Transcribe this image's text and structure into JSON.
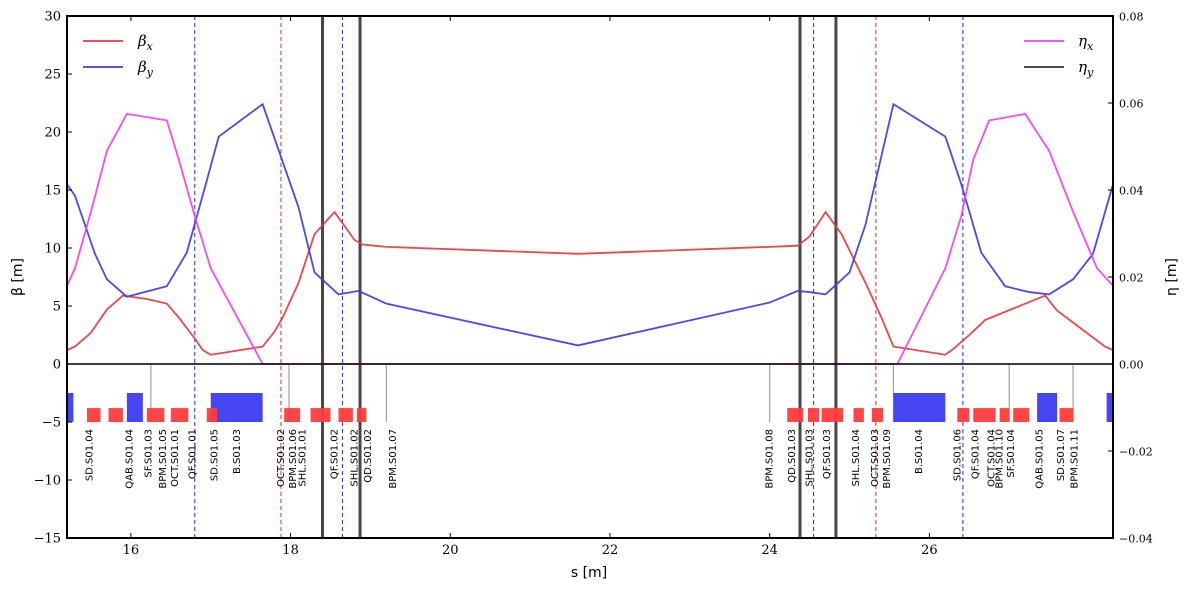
{
  "chart_data": {
    "type": "line",
    "xlabel": "s [m]",
    "ylabel_left": "β [m]",
    "ylabel_right": "η [m]",
    "xlim": [
      15.2,
      28.3
    ],
    "ylim_left": [
      -15,
      30
    ],
    "ylim_right": [
      -0.04,
      0.08
    ],
    "xticks": [
      16,
      18,
      20,
      22,
      24,
      26
    ],
    "yticks_left": [
      -15,
      -10,
      -5,
      0,
      5,
      10,
      15,
      20,
      25,
      30
    ],
    "yticks_right": [
      -0.04,
      -0.02,
      0.0,
      0.02,
      0.04,
      0.06,
      0.08
    ],
    "yticks_right_labels": [
      "−0.04",
      "−0.02",
      "0.00",
      "0.02",
      "0.04",
      "0.06",
      "0.08"
    ],
    "legend_left": [
      {
        "name": "βx",
        "base": "β",
        "sub": "x",
        "color": "#e8383b"
      },
      {
        "name": "βy",
        "base": "β",
        "sub": "y",
        "color": "#3b3be8"
      }
    ],
    "legend_right": [
      {
        "name": "ηx",
        "base": "η",
        "sub": "x",
        "color": "#f03ff0"
      },
      {
        "name": "ηy",
        "base": "η",
        "sub": "y",
        "color": "#333333"
      }
    ],
    "series": [
      {
        "name": "βx",
        "axis": "left",
        "color": "#e8383b",
        "x": [
          15.2,
          15.3,
          15.5,
          15.7,
          15.9,
          16.2,
          16.45,
          16.6,
          16.8,
          16.9,
          17.0,
          17.65,
          17.8,
          17.9,
          18.1,
          18.3,
          18.55,
          18.8,
          18.9,
          19.2,
          21.6,
          24.0,
          24.35,
          24.5,
          24.7,
          24.9,
          25.2,
          25.4,
          25.55,
          26.2,
          26.3,
          26.5,
          26.7,
          27.2,
          27.45,
          27.6,
          28.2,
          28.3
        ],
        "y": [
          1.2,
          1.5,
          2.7,
          4.7,
          5.9,
          5.6,
          5.2,
          4.0,
          2.2,
          1.2,
          0.8,
          1.5,
          2.8,
          4.0,
          7.0,
          11.2,
          13.1,
          10.7,
          10.3,
          10.1,
          9.5,
          10.1,
          10.2,
          11.0,
          13.1,
          11.2,
          7.0,
          4.0,
          1.5,
          0.8,
          1.3,
          2.5,
          3.8,
          5.2,
          5.9,
          4.6,
          1.5,
          1.2
        ]
      },
      {
        "name": "βy",
        "axis": "left",
        "color": "#3b3be8",
        "x": [
          15.2,
          15.3,
          15.55,
          15.7,
          15.95,
          16.45,
          16.7,
          16.95,
          17.1,
          17.65,
          18.1,
          18.3,
          18.6,
          18.85,
          19.2,
          21.6,
          24.0,
          24.35,
          24.5,
          24.7,
          25.0,
          25.2,
          25.55,
          26.2,
          26.4,
          26.65,
          26.95,
          27.25,
          27.5,
          27.8,
          28.05,
          28.3
        ],
        "y": [
          15.5,
          14.5,
          9.5,
          7.3,
          5.8,
          6.7,
          9.6,
          15.8,
          19.6,
          22.4,
          13.5,
          7.9,
          6.0,
          6.3,
          5.2,
          1.6,
          5.3,
          6.3,
          6.2,
          6.0,
          7.9,
          12.0,
          22.4,
          19.6,
          15.5,
          9.6,
          6.7,
          6.2,
          6.0,
          7.3,
          9.5,
          15.5
        ]
      },
      {
        "name": "ηx",
        "axis": "right",
        "color": "#f03ff0",
        "x": [
          15.2,
          15.3,
          15.5,
          15.7,
          15.95,
          16.45,
          16.6,
          16.8,
          17.0,
          17.65,
          17.7,
          18.0,
          24.0,
          25.55,
          25.6,
          26.2,
          26.4,
          26.55,
          26.75,
          27.2,
          27.5,
          27.8,
          28.1,
          28.3
        ],
        "y": [
          0.018,
          0.022,
          0.035,
          0.049,
          0.0575,
          0.056,
          0.047,
          0.034,
          0.022,
          0.0,
          0.0,
          0.0,
          0.0,
          0.0,
          0.0,
          0.022,
          0.034,
          0.047,
          0.056,
          0.0575,
          0.049,
          0.035,
          0.022,
          0.018
        ]
      },
      {
        "name": "ηy",
        "axis": "right",
        "color": "#333333",
        "x": [
          15.2,
          28.3
        ],
        "y": [
          0.0,
          0.0
        ]
      }
    ],
    "vlines": [
      {
        "x": 16.8,
        "color": "#3b3be8",
        "style": "dashed",
        "width": 1.1
      },
      {
        "x": 17.88,
        "color": "#e8383b",
        "style": "dashed",
        "width": 1.1
      },
      {
        "x": 18.65,
        "color": "#3b3be8",
        "style": "dashed",
        "width": 1.1
      },
      {
        "x": 24.55,
        "color": "#3b3be8",
        "style": "dashed",
        "width": 1.1
      },
      {
        "x": 25.33,
        "color": "#e8383b",
        "style": "dashed",
        "width": 1.1
      },
      {
        "x": 26.42,
        "color": "#3b3be8",
        "style": "dashed",
        "width": 1.1
      },
      {
        "x": 18.4,
        "color": "#333333",
        "style": "solid",
        "width": 3
      },
      {
        "x": 18.87,
        "color": "#333333",
        "style": "solid",
        "width": 3
      },
      {
        "x": 24.38,
        "color": "#333333",
        "style": "solid",
        "width": 3
      },
      {
        "x": 24.83,
        "color": "#333333",
        "style": "solid",
        "width": 3
      }
    ],
    "element_boxes": [
      {
        "x0": 15.2,
        "x1": 15.28,
        "kind": "big"
      },
      {
        "x0": 15.95,
        "x1": 16.15,
        "kind": "big"
      },
      {
        "x0": 17.0,
        "x1": 17.65,
        "kind": "big"
      },
      {
        "x0": 25.55,
        "x1": 26.2,
        "kind": "big"
      },
      {
        "x0": 27.35,
        "x1": 27.6,
        "kind": "big"
      },
      {
        "x0": 28.22,
        "x1": 28.3,
        "kind": "big"
      },
      {
        "x0": 15.45,
        "x1": 15.62,
        "kind": "small"
      },
      {
        "x0": 15.72,
        "x1": 15.9,
        "kind": "small"
      },
      {
        "x0": 16.2,
        "x1": 16.42,
        "kind": "small"
      },
      {
        "x0": 16.5,
        "x1": 16.72,
        "kind": "small"
      },
      {
        "x0": 16.95,
        "x1": 17.08,
        "kind": "small"
      },
      {
        "x0": 17.92,
        "x1": 18.12,
        "kind": "small"
      },
      {
        "x0": 18.25,
        "x1": 18.5,
        "kind": "small"
      },
      {
        "x0": 18.6,
        "x1": 18.78,
        "kind": "small"
      },
      {
        "x0": 18.83,
        "x1": 18.95,
        "kind": "small"
      },
      {
        "x0": 24.22,
        "x1": 24.42,
        "kind": "small"
      },
      {
        "x0": 24.48,
        "x1": 24.62,
        "kind": "small"
      },
      {
        "x0": 24.65,
        "x1": 24.92,
        "kind": "small"
      },
      {
        "x0": 25.05,
        "x1": 25.18,
        "kind": "small"
      },
      {
        "x0": 25.28,
        "x1": 25.42,
        "kind": "small"
      },
      {
        "x0": 26.35,
        "x1": 26.5,
        "kind": "small"
      },
      {
        "x0": 26.55,
        "x1": 26.83,
        "kind": "small"
      },
      {
        "x0": 26.88,
        "x1": 27.0,
        "kind": "small"
      },
      {
        "x0": 27.05,
        "x1": 27.25,
        "kind": "small"
      },
      {
        "x0": 27.63,
        "x1": 27.8,
        "kind": "small"
      }
    ],
    "bpm_lines": [
      16.25,
      17.98,
      19.2,
      24.0,
      25.55,
      27.0,
      27.8
    ],
    "element_labels": [
      {
        "text": "SD.S01.04",
        "x": 15.48
      },
      {
        "text": "QAB.S01.04",
        "x": 15.98
      },
      {
        "text": "SF.S01.03",
        "x": 16.22
      },
      {
        "text": "BPM.S01.05",
        "x": 16.4
      },
      {
        "text": "OCT.S01.01",
        "x": 16.55
      },
      {
        "text": "QF.S01.01",
        "x": 16.77
      },
      {
        "text": "SD.S01.05",
        "x": 17.05
      },
      {
        "text": "B.S01.03",
        "x": 17.33
      },
      {
        "text": "OCT.S01.02",
        "x": 17.88
      },
      {
        "text": "BPM.S01.06",
        "x": 18.03
      },
      {
        "text": "SHL.S01.01",
        "x": 18.15
      },
      {
        "text": "QF.S01.02",
        "x": 18.55
      },
      {
        "text": "SHL.S01.02",
        "x": 18.8
      },
      {
        "text": "QD.S01.02",
        "x": 18.97
      },
      {
        "text": "BPM.S01.07",
        "x": 19.28
      },
      {
        "text": "BPM.S01.08",
        "x": 24.0
      },
      {
        "text": "QD.S01.03",
        "x": 24.28
      },
      {
        "text": "SHL.S01.03",
        "x": 24.5
      },
      {
        "text": "QF.S01.03",
        "x": 24.72
      },
      {
        "text": "SHL.S01.04",
        "x": 25.08
      },
      {
        "text": "OCT.S01.03",
        "x": 25.32
      },
      {
        "text": "BPM.S01.09",
        "x": 25.47
      },
      {
        "text": "B.S01.04",
        "x": 25.87
      },
      {
        "text": "SD.S01.06",
        "x": 26.35
      },
      {
        "text": "QF.S01.04",
        "x": 26.58
      },
      {
        "text": "OCT.S01.04",
        "x": 26.78
      },
      {
        "text": "BPM.S01.10",
        "x": 26.88
      },
      {
        "text": "SF.S01.04",
        "x": 27.02
      },
      {
        "text": "QAB.S01.05",
        "x": 27.38
      },
      {
        "text": "SD.S01.07",
        "x": 27.65
      },
      {
        "text": "BPM.S01.11",
        "x": 27.82
      }
    ]
  }
}
